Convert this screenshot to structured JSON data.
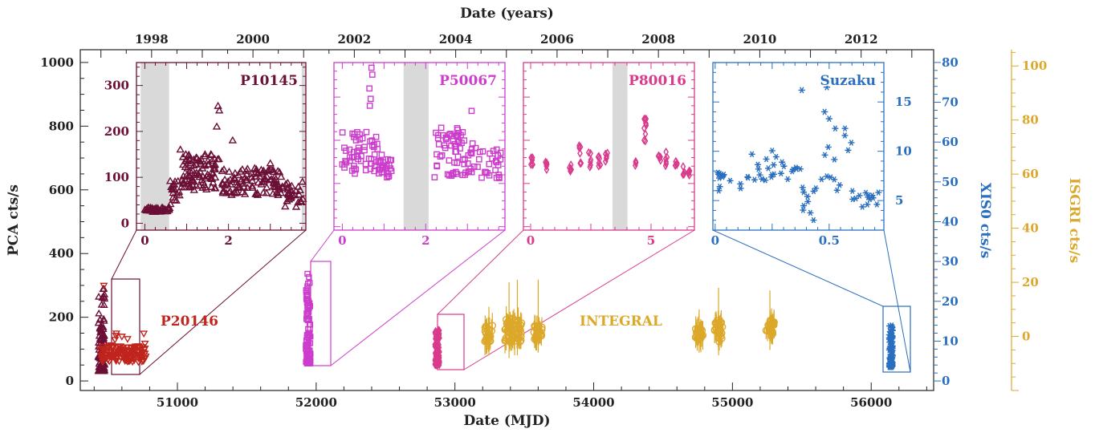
{
  "chart_data": {
    "type": "scatter",
    "title": "",
    "x_label_bottom": "Date (MJD)",
    "x_label_top": "Date (years)",
    "y_label_left": "PCA cts/s",
    "y_label_right_1": "XIS0 cts/s",
    "y_label_right_2": "ISGRI cts/s",
    "xlim": [
      50300,
      56450
    ],
    "ylim_left": [
      -30,
      1040
    ],
    "ylim_xis": [
      -2.4,
      83.2
    ],
    "ylim_isgri": [
      -20,
      106
    ],
    "x_ticks": [
      "51000",
      "52000",
      "53000",
      "54000",
      "55000",
      "56000"
    ],
    "year_ticks": [
      "1998",
      "2000",
      "2002",
      "2004",
      "2006",
      "2008",
      "2010",
      "2012"
    ],
    "y_ticks_left": [
      "0",
      "200",
      "400",
      "600",
      "800",
      "1000"
    ],
    "y_ticks_xis": [
      "0",
      "10",
      "20",
      "30",
      "40",
      "50",
      "60",
      "70",
      "80"
    ],
    "y_ticks_isgri": [
      "0",
      "20",
      "40",
      "60",
      "80",
      "100"
    ],
    "colors": {
      "p10145": "#6b0f36",
      "p20146": "#c0241c",
      "p50067": "#cc3dcc",
      "p80016": "#d93a8c",
      "integral": "#dca82a",
      "suzaku": "#2a6fbf",
      "shade": "#d9d9d9"
    },
    "labels": {
      "p20146": "P20146",
      "integral": "INTEGRAL"
    },
    "main_series": [
      {
        "id": "p10145",
        "marker": "triangle-up",
        "axis": "pca",
        "x_range": [
          50430,
          50475
        ],
        "y_range": [
          30,
          300
        ]
      },
      {
        "id": "p20146",
        "marker": "triangle-down",
        "axis": "pca",
        "x_range": [
          50440,
          50780
        ],
        "y_range": [
          55,
          300
        ]
      },
      {
        "id": "p50067",
        "marker": "square",
        "axis": "pca",
        "x_range": [
          51925,
          51960
        ],
        "y_range": [
          55,
          340
        ]
      },
      {
        "id": "p80016",
        "marker": "diamond",
        "axis": "pca",
        "x_range": [
          52855,
          52890
        ],
        "y_range": [
          50,
          160
        ]
      },
      {
        "id": "suzaku",
        "marker": "asterisk",
        "axis": "xis",
        "x_range": [
          56130,
          56155
        ],
        "y_range": [
          3.5,
          14
        ]
      }
    ],
    "integral_groups": [
      {
        "x": 53245,
        "y_range": [
          -2,
          4
        ],
        "err_top": 3
      },
      {
        "x": 53390,
        "y_range": [
          -3,
          7
        ],
        "err_top": 12
      },
      {
        "x": 53450,
        "y_range": [
          -2,
          6
        ],
        "err_top": 13
      },
      {
        "x": 53600,
        "y_range": [
          -1,
          4
        ],
        "err_top": 13
      },
      {
        "x": 54760,
        "y_range": [
          -1,
          3
        ],
        "err_top": 2
      },
      {
        "x": 54900,
        "y_range": [
          -2,
          6
        ],
        "err_top": 10
      },
      {
        "x": 55270,
        "y_range": [
          0,
          6
        ],
        "err_top": 9
      }
    ],
    "insets": [
      {
        "id": "p10145",
        "label": "P10145",
        "marker": "triangle-up",
        "xlim": [
          -0.2,
          3.85
        ],
        "ylim": [
          -15,
          350
        ],
        "x_ticks": [
          "0",
          "2"
        ],
        "y_ticks": [
          "0",
          "100",
          "200",
          "300"
        ],
        "shaded": [
          [
            -0.1,
            0.58
          ],
          [
            3.75,
            3.85
          ]
        ],
        "source_xlim": [
          50400,
          50530
        ],
        "segments": [
          {
            "x0": 0.0,
            "x1": 0.6,
            "ymin": 24,
            "ymax": 34,
            "n": 45
          },
          {
            "x0": 0.6,
            "x1": 0.9,
            "ymin": 40,
            "ymax": 95,
            "n": 20
          },
          {
            "x0": 0.9,
            "x1": 1.8,
            "ymin": 70,
            "ymax": 150,
            "n": 90
          },
          {
            "x0": 1.8,
            "x1": 3.3,
            "ymin": 60,
            "ymax": 120,
            "n": 110
          },
          {
            "x0": 3.3,
            "x1": 3.8,
            "ymin": 35,
            "ymax": 90,
            "n": 30
          }
        ],
        "spikes": [
          [
            0.85,
            160
          ],
          [
            1.75,
            255
          ],
          [
            1.78,
            245
          ],
          [
            1.72,
            210
          ],
          [
            2.1,
            180
          ],
          [
            3.0,
            130
          ]
        ]
      },
      {
        "id": "p50067",
        "label": "P50067",
        "marker": "square",
        "xlim": [
          -0.2,
          3.9
        ],
        "ylim": [
          -2,
          95
        ],
        "x_ticks": [
          "0",
          "2"
        ],
        "y_ticks": [],
        "shaded": [
          [
            1.47,
            2.07
          ]
        ],
        "source_xlim": [
          51895,
          52000
        ],
        "segments": [
          {
            "x0": 0.0,
            "x1": 0.85,
            "ymin": 30,
            "ymax": 55,
            "n": 55
          },
          {
            "x0": 0.85,
            "x1": 1.2,
            "ymin": 28,
            "ymax": 42,
            "n": 25
          },
          {
            "x0": 2.2,
            "x1": 3.2,
            "ymin": 28,
            "ymax": 58,
            "n": 70
          },
          {
            "x0": 3.2,
            "x1": 3.8,
            "ymin": 28,
            "ymax": 45,
            "n": 25
          }
        ],
        "spikes": [
          [
            0.7,
            92
          ],
          [
            0.72,
            88
          ],
          [
            0.65,
            80
          ],
          [
            0.68,
            74
          ],
          [
            0.66,
            70
          ],
          [
            3.1,
            67
          ]
        ]
      },
      {
        "id": "p80016",
        "label": "P80016",
        "marker": "diamond",
        "xlim": [
          -0.3,
          6.8
        ],
        "ylim": [
          -2,
          95
        ],
        "x_ticks": [
          "0",
          "5"
        ],
        "y_ticks": [],
        "shaded": [
          [
            3.4,
            4.02
          ]
        ],
        "source_xlim": [
          52840,
          52900
        ],
        "segments": [
          {
            "x0": 0.0,
            "x1": 0.1,
            "ymin": 35,
            "ymax": 40,
            "n": 6
          },
          {
            "x0": 0.6,
            "x1": 0.7,
            "ymin": 33,
            "ymax": 39,
            "n": 6
          },
          {
            "x0": 1.6,
            "x1": 1.7,
            "ymin": 32,
            "ymax": 37,
            "n": 6
          },
          {
            "x0": 2.0,
            "x1": 2.1,
            "ymin": 35,
            "ymax": 47,
            "n": 7
          },
          {
            "x0": 2.4,
            "x1": 2.5,
            "ymin": 34,
            "ymax": 44,
            "n": 6
          },
          {
            "x0": 2.8,
            "x1": 2.9,
            "ymin": 34,
            "ymax": 41,
            "n": 6
          },
          {
            "x0": 3.1,
            "x1": 3.2,
            "ymin": 35,
            "ymax": 43,
            "n": 6
          },
          {
            "x0": 4.3,
            "x1": 4.4,
            "ymin": 34,
            "ymax": 38,
            "n": 5
          },
          {
            "x0": 4.7,
            "x1": 4.8,
            "ymin": 45,
            "ymax": 65,
            "n": 10
          },
          {
            "x0": 5.3,
            "x1": 5.4,
            "ymin": 35,
            "ymax": 42,
            "n": 6
          },
          {
            "x0": 5.6,
            "x1": 5.7,
            "ymin": 35,
            "ymax": 44,
            "n": 6
          },
          {
            "x0": 6.0,
            "x1": 6.1,
            "ymin": 33,
            "ymax": 39,
            "n": 6
          },
          {
            "x0": 6.3,
            "x1": 6.4,
            "ymin": 30,
            "ymax": 35,
            "n": 5
          },
          {
            "x0": 6.55,
            "x1": 6.65,
            "ymin": 29,
            "ymax": 34,
            "n": 5
          }
        ],
        "spikes": []
      },
      {
        "id": "suzaku",
        "label": "Suzaku",
        "marker": "asterisk",
        "xlim": [
          -0.01,
          0.74
        ],
        "ylim": [
          2,
          19
        ],
        "x_ticks": [
          "0",
          "0.5"
        ],
        "y_ticks": [
          "5",
          "10",
          "15"
        ],
        "shaded": [],
        "source_xlim": [
          56100,
          56180
        ],
        "segments": [
          {
            "x0": 0.0,
            "x1": 0.12,
            "ymin": 6.0,
            "ymax": 8.0,
            "n": 12
          },
          {
            "x0": 0.12,
            "x1": 0.25,
            "ymin": 7.0,
            "ymax": 10.5,
            "n": 14
          },
          {
            "x0": 0.25,
            "x1": 0.38,
            "ymin": 6.5,
            "ymax": 9.5,
            "n": 12
          },
          {
            "x0": 0.38,
            "x1": 0.46,
            "ymin": 2.5,
            "ymax": 6.5,
            "n": 10
          },
          {
            "x0": 0.46,
            "x1": 0.6,
            "ymin": 5.0,
            "ymax": 12.5,
            "n": 14
          },
          {
            "x0": 0.6,
            "x1": 0.72,
            "ymin": 4.0,
            "ymax": 6.2,
            "n": 14
          }
        ],
        "spikes": [
          [
            0.38,
            16.2
          ],
          [
            0.49,
            16.5
          ],
          [
            0.48,
            14.0
          ],
          [
            0.5,
            13.3
          ]
        ]
      }
    ]
  }
}
